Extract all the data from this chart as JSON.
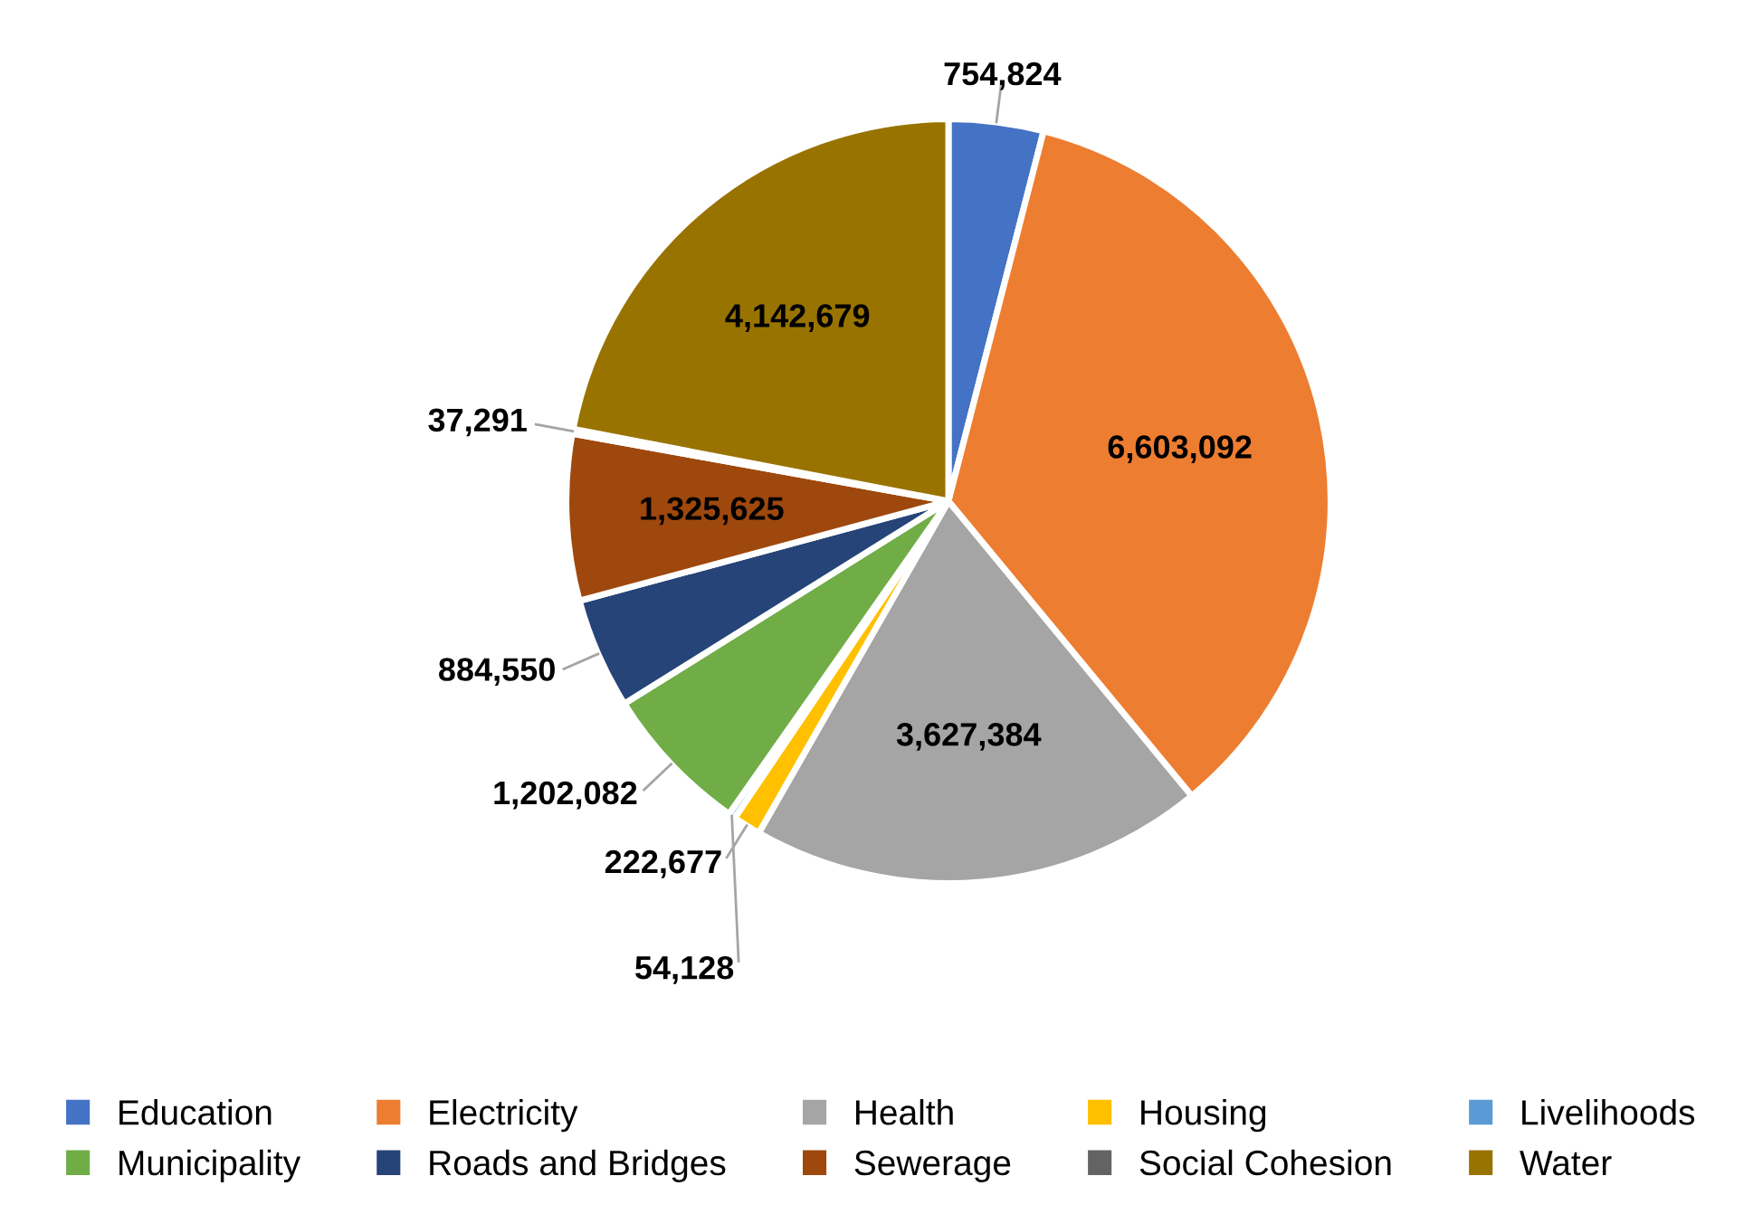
{
  "chart_data": {
    "type": "pie",
    "categories": [
      "Education",
      "Electricity",
      "Health",
      "Housing",
      "Livelihoods",
      "Municipality",
      "Roads and Bridges",
      "Sewerage",
      "Social Cohesion",
      "Water"
    ],
    "values": [
      754824,
      6603092,
      3627384,
      222677,
      54128,
      1202082,
      884550,
      1325625,
      37291,
      4142679
    ],
    "colors": [
      "#4472c4",
      "#ed7d31",
      "#a5a5a5",
      "#ffc000",
      "#5b9bd5",
      "#70ad47",
      "#264478",
      "#9e480e",
      "#636363",
      "#997300"
    ],
    "value_labels": [
      "754,824",
      "6,603,092",
      "3,627,384",
      "222,677",
      "54,128",
      "1,202,082",
      "884,550",
      "1,325,625",
      "37,291",
      "4,142,679"
    ],
    "legend": "bottom"
  }
}
